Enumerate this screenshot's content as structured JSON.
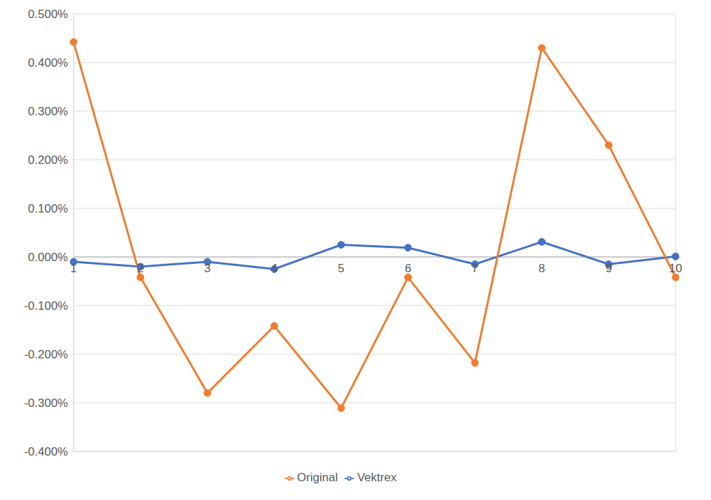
{
  "chart_data": {
    "type": "line",
    "categories": [
      "1",
      "2",
      "3",
      "4",
      "5",
      "6",
      "7",
      "8",
      "9",
      "10"
    ],
    "series": [
      {
        "name": "Vektrex",
        "color": "#4472c4",
        "marker": "circle",
        "values": [
          -0.01,
          -0.02,
          -0.01,
          -0.025,
          0.025,
          0.019,
          -0.015,
          0.031,
          -0.015,
          0.001
        ]
      },
      {
        "name": "Original",
        "color": "#ed7d31",
        "marker": "circle",
        "values": [
          0.442,
          -0.042,
          -0.28,
          -0.142,
          -0.311,
          -0.042,
          -0.218,
          0.43,
          0.23,
          -0.042
        ]
      }
    ],
    "ylim": [
      -0.4,
      0.5
    ],
    "yticks": [
      {
        "value": -0.4,
        "label": "-0.400%"
      },
      {
        "value": -0.3,
        "label": "-0.300%"
      },
      {
        "value": -0.2,
        "label": "-0.200%"
      },
      {
        "value": -0.1,
        "label": "-0.100%"
      },
      {
        "value": 0,
        "label": "0.000%"
      },
      {
        "value": 0.1,
        "label": "0.100%"
      },
      {
        "value": 0.2,
        "label": "0.200%"
      },
      {
        "value": 0.3,
        "label": "0.300%"
      },
      {
        "value": 0.4,
        "label": "0.400%"
      },
      {
        "value": 0.5,
        "label": "0.500%"
      }
    ],
    "grid": true,
    "legend": "bottom"
  }
}
